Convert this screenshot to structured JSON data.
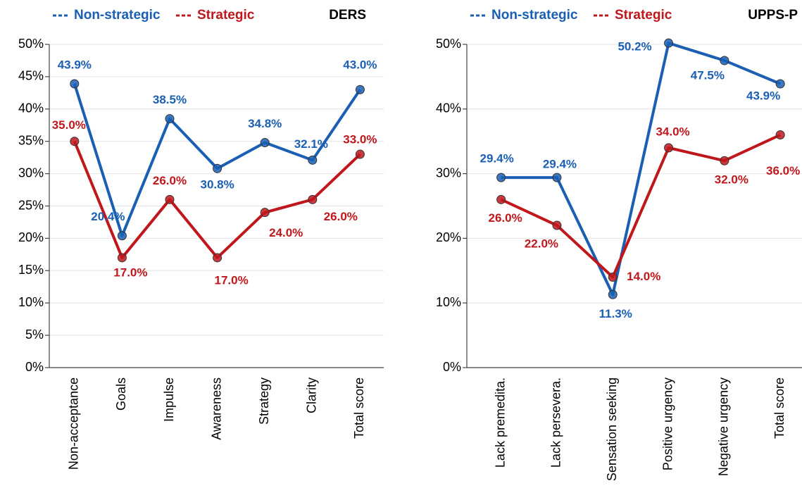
{
  "chart_data": [
    {
      "type": "line",
      "title": "DERS",
      "categories": [
        "Non-acceptance",
        "Goals",
        "Impulse",
        "Awareness",
        "Strategy",
        "Clarity",
        "Total score"
      ],
      "series": [
        {
          "name": "Non-strategic",
          "color": "#1a5fb4",
          "values": [
            43.9,
            20.4,
            38.5,
            30.8,
            34.8,
            32.1,
            43.0
          ],
          "value_labels": [
            "43.9%",
            "20.4%",
            "38.5%",
            "30.8%",
            "34.8%",
            "32.1%",
            "43.0%"
          ]
        },
        {
          "name": "Strategic",
          "color": "#c0171c",
          "values": [
            35.0,
            17.0,
            26.0,
            17.0,
            24.0,
            26.0,
            33.0
          ],
          "value_labels": [
            "35.0%",
            "17.0%",
            "26.0%",
            "17.0%",
            "24.0%",
            "26.0%",
            "33.0%"
          ]
        }
      ],
      "ylim": [
        0,
        50
      ],
      "yticks": [
        {
          "value": 0,
          "label": "0%"
        },
        {
          "value": 5,
          "label": "5%"
        },
        {
          "value": 10,
          "label": "10%"
        },
        {
          "value": 15,
          "label": "15%"
        },
        {
          "value": 20,
          "label": "20%"
        },
        {
          "value": 25,
          "label": "25%"
        },
        {
          "value": 30,
          "label": "30%"
        },
        {
          "value": 35,
          "label": "35%"
        },
        {
          "value": 40,
          "label": "40%"
        },
        {
          "value": 45,
          "label": "45%"
        },
        {
          "value": 50,
          "label": "50%"
        }
      ],
      "grid": true
    },
    {
      "type": "line",
      "title": "UPPS-P",
      "categories": [
        "Lack premedita.",
        "Lack persevera.",
        "Sensation seeking",
        "Positive urgency",
        "Negative urgency",
        "Total score"
      ],
      "series": [
        {
          "name": "Non-strategic",
          "color": "#1a5fb4",
          "values": [
            29.4,
            29.4,
            11.3,
            50.2,
            47.5,
            43.9
          ],
          "value_labels": [
            "29.4%",
            "29.4%",
            "11.3%",
            "50.2%",
            "47.5%",
            "43.9%"
          ]
        },
        {
          "name": "Strategic",
          "color": "#c0171c",
          "values": [
            26.0,
            22.0,
            14.0,
            34.0,
            32.0,
            36.0
          ],
          "value_labels": [
            "26.0%",
            "22.0%",
            "14.0%",
            "34.0%",
            "32.0%",
            "36.0%"
          ]
        }
      ],
      "ylim": [
        0,
        50
      ],
      "yticks": [
        {
          "value": 0,
          "label": "0%"
        },
        {
          "value": 10,
          "label": "10%"
        },
        {
          "value": 20,
          "label": "20%"
        },
        {
          "value": 30,
          "label": "30%"
        },
        {
          "value": 40,
          "label": "40%"
        },
        {
          "value": 50,
          "label": "50%"
        }
      ],
      "grid": true
    }
  ]
}
